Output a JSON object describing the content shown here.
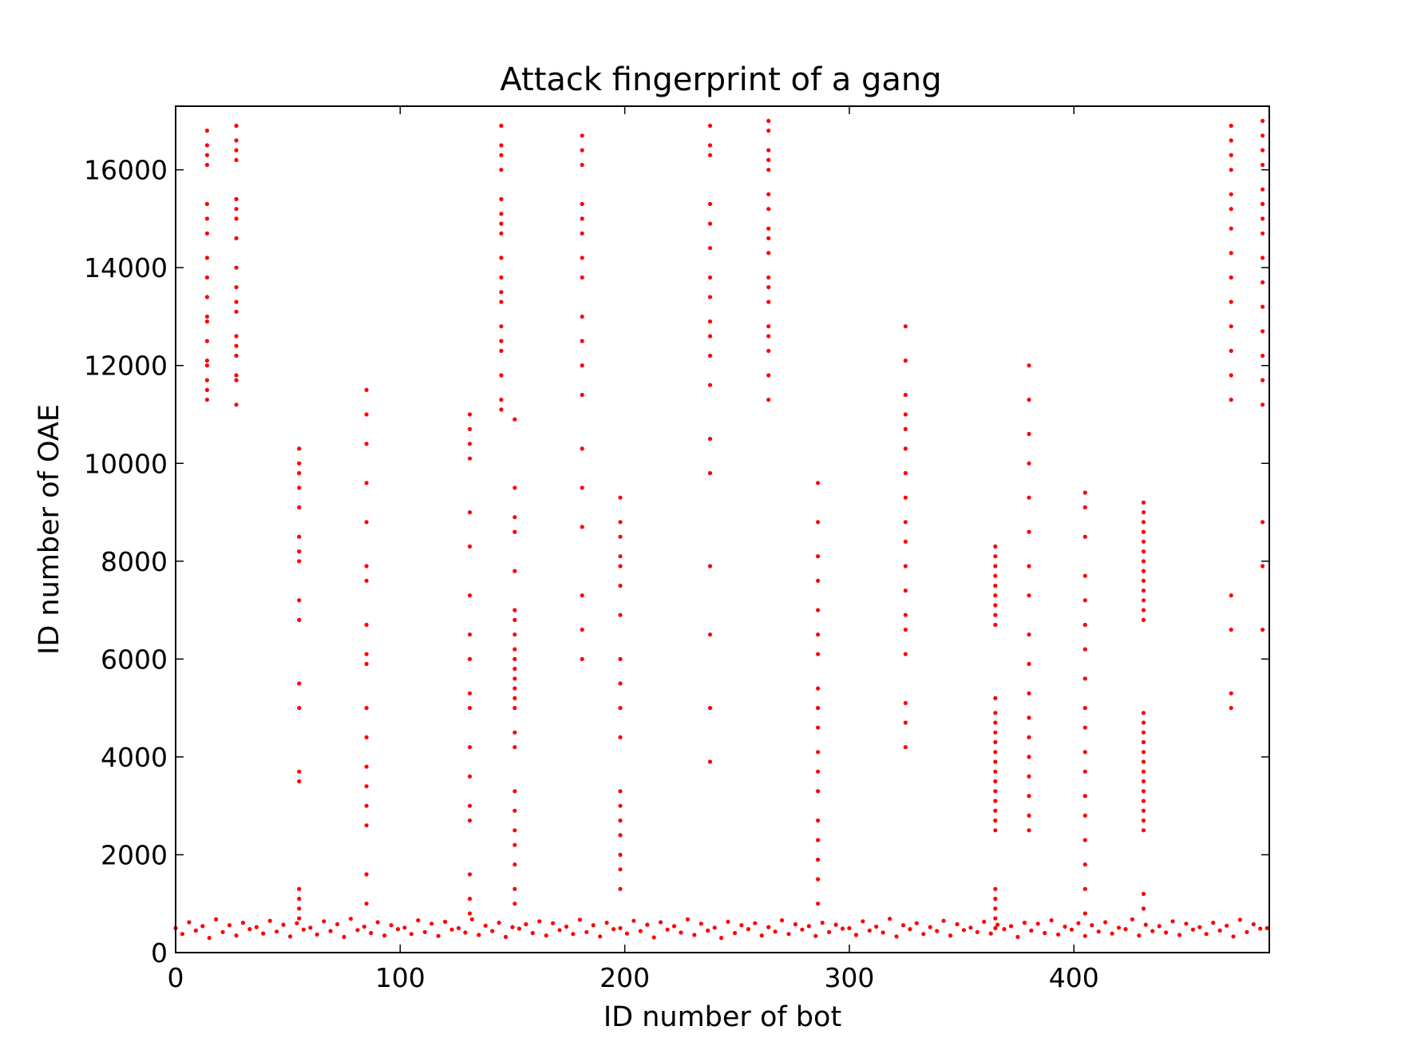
{
  "chart_data": {
    "type": "scatter",
    "title": "Attack fingerprint of a gang",
    "xlabel": "ID number of bot",
    "ylabel": "ID number of OAE",
    "xlim": [
      0,
      487
    ],
    "ylim": [
      0,
      17300
    ],
    "xticks": [
      0,
      100,
      200,
      300,
      400
    ],
    "yticks": [
      0,
      2000,
      4000,
      6000,
      8000,
      10000,
      12000,
      14000,
      16000
    ],
    "grid": false,
    "legend": "none",
    "marker_color": "#ff0000",
    "marker": "dot",
    "series": [
      {
        "x": [
          0,
          3,
          6,
          9,
          12,
          15,
          18,
          21,
          24,
          27,
          30,
          33,
          36,
          39,
          42,
          45,
          48,
          51,
          54,
          57,
          60,
          63,
          66,
          69,
          72,
          75,
          78,
          81,
          84,
          87,
          90,
          93,
          96,
          99,
          102,
          105,
          108,
          111,
          114,
          117,
          120,
          123,
          126,
          129,
          132,
          135,
          138,
          141,
          144,
          147,
          150,
          153,
          156,
          159,
          162,
          165,
          168,
          171,
          174,
          177,
          180,
          183,
          186,
          189,
          192,
          195,
          198,
          201,
          204,
          207,
          210,
          213,
          216,
          219,
          222,
          225,
          228,
          231,
          234,
          237,
          240,
          243,
          246,
          249,
          252,
          255,
          258,
          261,
          264,
          267,
          270,
          273,
          276,
          279,
          282,
          285,
          288,
          291,
          294,
          297,
          300,
          303,
          306,
          309,
          312,
          315,
          318,
          321,
          324,
          327,
          330,
          333,
          336,
          339,
          342,
          345,
          348,
          351,
          354,
          357,
          360,
          363,
          366,
          369,
          372,
          375,
          378,
          381,
          384,
          387,
          390,
          393,
          396,
          399,
          402,
          405,
          408,
          411,
          414,
          417,
          420,
          423,
          426,
          429,
          432,
          435,
          438,
          441,
          444,
          447,
          450,
          453,
          456,
          459,
          462,
          465,
          468,
          471,
          474,
          477,
          480,
          483,
          486,
          14,
          14,
          14,
          14,
          14,
          14,
          14,
          14,
          14,
          14,
          14,
          14,
          14,
          14,
          14,
          14,
          14,
          14,
          27,
          27,
          27,
          27,
          27,
          27,
          27,
          27,
          27,
          27,
          27,
          27,
          27,
          27,
          27,
          27,
          27,
          27,
          55,
          55,
          55,
          55,
          55,
          55,
          55,
          55,
          55,
          55,
          55,
          55,
          55,
          55,
          55,
          55,
          55,
          55,
          85,
          85,
          85,
          85,
          85,
          85,
          85,
          85,
          85,
          85,
          85,
          85,
          85,
          85,
          85,
          85,
          85,
          85,
          131,
          131,
          131,
          131,
          131,
          131,
          131,
          131,
          131,
          131,
          131,
          131,
          131,
          131,
          131,
          131,
          131,
          131,
          145,
          145,
          145,
          145,
          145,
          145,
          145,
          145,
          145,
          145,
          145,
          145,
          145,
          145,
          145,
          145,
          145,
          145,
          151,
          151,
          151,
          151,
          151,
          151,
          151,
          151,
          151,
          151,
          151,
          151,
          151,
          151,
          151,
          151,
          151,
          151,
          151,
          151,
          151,
          151,
          151,
          151,
          181,
          181,
          181,
          181,
          181,
          181,
          181,
          181,
          181,
          181,
          181,
          181,
          181,
          181,
          181,
          181,
          181,
          181,
          198,
          198,
          198,
          198,
          198,
          198,
          198,
          198,
          198,
          198,
          198,
          198,
          198,
          198,
          198,
          198,
          198,
          198,
          238,
          238,
          238,
          238,
          238,
          238,
          238,
          238,
          238,
          238,
          238,
          238,
          238,
          238,
          238,
          238,
          238,
          238,
          264,
          264,
          264,
          264,
          264,
          264,
          264,
          264,
          264,
          264,
          264,
          264,
          264,
          264,
          264,
          264,
          264,
          264,
          286,
          286,
          286,
          286,
          286,
          286,
          286,
          286,
          286,
          286,
          286,
          286,
          286,
          286,
          286,
          286,
          286,
          286,
          325,
          325,
          325,
          325,
          325,
          325,
          325,
          325,
          325,
          325,
          325,
          325,
          325,
          325,
          325,
          325,
          325,
          325,
          365,
          365,
          365,
          365,
          365,
          365,
          365,
          365,
          365,
          365,
          365,
          365,
          365,
          365,
          365,
          365,
          365,
          365,
          365,
          365,
          365,
          365,
          365,
          365,
          365,
          365,
          365,
          365,
          380,
          380,
          380,
          380,
          380,
          380,
          380,
          380,
          380,
          380,
          380,
          380,
          380,
          380,
          380,
          380,
          380,
          380,
          405,
          405,
          405,
          405,
          405,
          405,
          405,
          405,
          405,
          405,
          405,
          405,
          405,
          405,
          405,
          405,
          405,
          405,
          431,
          431,
          431,
          431,
          431,
          431,
          431,
          431,
          431,
          431,
          431,
          431,
          431,
          431,
          431,
          431,
          431,
          431,
          431,
          431,
          431,
          431,
          431,
          431,
          431,
          431,
          431,
          431,
          470,
          470,
          470,
          470,
          470,
          470,
          470,
          470,
          470,
          470,
          470,
          470,
          470,
          470,
          470,
          470,
          470,
          470,
          484,
          484,
          484,
          484,
          484,
          484,
          484,
          484,
          484,
          484,
          484,
          484,
          484,
          484,
          484,
          484,
          484,
          484
        ],
        "y": [
          500,
          380,
          620,
          450,
          540,
          300,
          680,
          420,
          560,
          350,
          610,
          480,
          520,
          390,
          650,
          430,
          570,
          330,
          600,
          470,
          510,
          370,
          640,
          440,
          580,
          320,
          690,
          460,
          530,
          400,
          620,
          350,
          560,
          480,
          510,
          380,
          660,
          420,
          590,
          340,
          630,
          470,
          500,
          410,
          680,
          360,
          550,
          440,
          610,
          320,
          520,
          490,
          580,
          400,
          640,
          350,
          600,
          460,
          530,
          380,
          670,
          420,
          560,
          330,
          610,
          480,
          500,
          390,
          650,
          440,
          570,
          310,
          620,
          470,
          540,
          410,
          680,
          360,
          590,
          450,
          510,
          300,
          630,
          400,
          560,
          480,
          600,
          350,
          520,
          430,
          660,
          380,
          580,
          470,
          540,
          340,
          610,
          420,
          570,
          490,
          500,
          360,
          640,
          450,
          530,
          410,
          690,
          330,
          560,
          480,
          600,
          380,
          520,
          440,
          650,
          350,
          580,
          460,
          510,
          420,
          630,
          390,
          570,
          480,
          540,
          320,
          610,
          450,
          590,
          400,
          660,
          370,
          530,
          470,
          600,
          340,
          560,
          430,
          620,
          390,
          510,
          480,
          680,
          350,
          570,
          440,
          540,
          410,
          640,
          360,
          590,
          470,
          520,
          380,
          610,
          450,
          550,
          330,
          670,
          420,
          580,
          490,
          500,
          11300,
          11700,
          12100,
          12500,
          12900,
          13400,
          13800,
          14200,
          14700,
          15000,
          15300,
          16100,
          16300,
          16500,
          16800,
          13000,
          12000,
          11500,
          11200,
          11700,
          12200,
          12600,
          13100,
          13600,
          14000,
          14600,
          15000,
          15200,
          15400,
          16200,
          16400,
          16600,
          16900,
          13300,
          12400,
          11800,
          10300,
          10000,
          9800,
          9100,
          8500,
          8200,
          7200,
          6800,
          5000,
          3700,
          3500,
          1300,
          1100,
          900,
          700,
          9500,
          8000,
          5500,
          1000,
          1600,
          2600,
          3000,
          3400,
          3800,
          4400,
          5000,
          5900,
          6100,
          6700,
          7600,
          7900,
          8800,
          9600,
          10400,
          11500,
          11000,
          800,
          1100,
          1600,
          2700,
          3000,
          3600,
          4200,
          5000,
          5300,
          6000,
          6500,
          7300,
          8300,
          9000,
          10400,
          10700,
          11000,
          10100,
          11300,
          11800,
          12300,
          12800,
          13300,
          13800,
          14200,
          14700,
          15100,
          15400,
          16000,
          16300,
          16500,
          16900,
          12500,
          13500,
          14900,
          11100,
          5000,
          5200,
          5400,
          5600,
          5800,
          6000,
          6200,
          6500,
          6800,
          7000,
          7800,
          8600,
          8900,
          9500,
          4500,
          4200,
          3300,
          2900,
          2500,
          2200,
          1800,
          1300,
          1000,
          10900,
          11400,
          12000,
          12500,
          13000,
          13800,
          14200,
          14700,
          15000,
          15300,
          16100,
          16400,
          16700,
          10300,
          9500,
          8700,
          7300,
          6600,
          6000,
          3300,
          3000,
          2700,
          2400,
          2000,
          1700,
          1300,
          4400,
          5000,
          6000,
          6900,
          7900,
          8500,
          8800,
          9300,
          7500,
          8100,
          5500,
          11600,
          12200,
          12900,
          13400,
          13800,
          14400,
          14900,
          15300,
          16300,
          16500,
          16900,
          10500,
          9800,
          7900,
          6500,
          5000,
          3900,
          12600,
          11300,
          11800,
          12300,
          12800,
          13300,
          13800,
          14300,
          14800,
          15200,
          15500,
          16000,
          16400,
          16800,
          17000,
          12600,
          13600,
          14600,
          16200,
          1000,
          1500,
          1900,
          2300,
          2700,
          3300,
          3700,
          4100,
          4600,
          5000,
          5400,
          6100,
          6500,
          7000,
          7600,
          8100,
          8800,
          9600,
          10300,
          10700,
          11000,
          9800,
          9300,
          8800,
          8400,
          7900,
          7400,
          6900,
          6600,
          6100,
          5100,
          4700,
          4200,
          11400,
          12100,
          12800,
          2500,
          2700,
          2900,
          3100,
          3300,
          3500,
          3700,
          3900,
          4100,
          4300,
          4500,
          4700,
          4900,
          5200,
          6700,
          6900,
          7100,
          7300,
          7500,
          7700,
          7900,
          8100,
          8300,
          1300,
          1100,
          900,
          700,
          500,
          2500,
          2800,
          3200,
          3600,
          4000,
          4400,
          4800,
          5300,
          5900,
          6500,
          7300,
          7900,
          8600,
          9300,
          10000,
          10600,
          11300,
          12000,
          800,
          1300,
          1800,
          2300,
          2800,
          3200,
          3700,
          4100,
          4600,
          5000,
          5600,
          6200,
          6700,
          7200,
          7700,
          8500,
          9100,
          9400,
          2500,
          2700,
          2900,
          3100,
          3300,
          3500,
          3700,
          3900,
          4100,
          4300,
          4500,
          4700,
          4900,
          6800,
          7000,
          7200,
          7400,
          7600,
          7800,
          8000,
          8200,
          8400,
          8600,
          8800,
          9000,
          9200,
          1200,
          900,
          11300,
          11800,
          12300,
          12800,
          13300,
          13800,
          14300,
          14800,
          15200,
          15500,
          16000,
          16300,
          16600,
          16900,
          5000,
          5300,
          6600,
          7300,
          11200,
          11700,
          12200,
          12700,
          13200,
          13700,
          14200,
          14700,
          15000,
          15300,
          15600,
          16100,
          16400,
          16700,
          17000,
          8800,
          7900,
          6600
        ]
      }
    ]
  }
}
